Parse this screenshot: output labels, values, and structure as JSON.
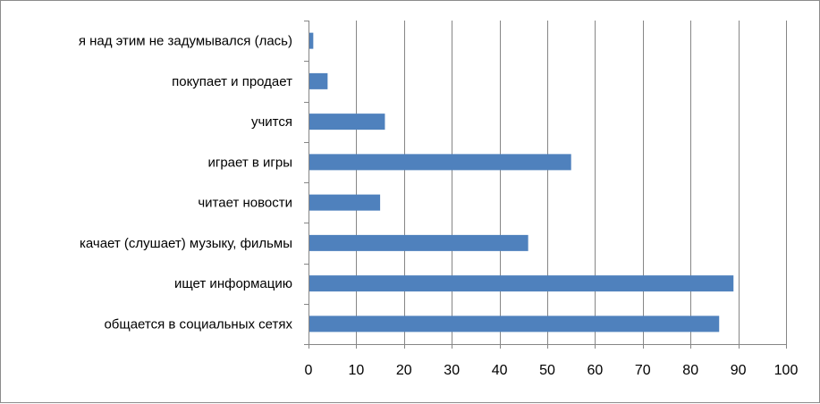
{
  "chart_data": {
    "type": "bar",
    "orientation": "horizontal",
    "categories": [
      "я над этим не задумывался (лась)",
      "покупает и продает",
      "учится",
      "играет в игры",
      "читает новости",
      "качает (слушает) музыку, фильмы",
      "ищет информацию",
      "общается в социальных сетях"
    ],
    "values": [
      1,
      4,
      16,
      55,
      15,
      46,
      89,
      86
    ],
    "xlim": [
      0,
      100
    ],
    "xticks": [
      0,
      10,
      20,
      30,
      40,
      50,
      60,
      70,
      80,
      90,
      100
    ],
    "title": "",
    "xlabel": "",
    "ylabel": "",
    "grid": true,
    "legend": "none",
    "bar_color": "#4f81bd",
    "grid_color": "#868686"
  }
}
